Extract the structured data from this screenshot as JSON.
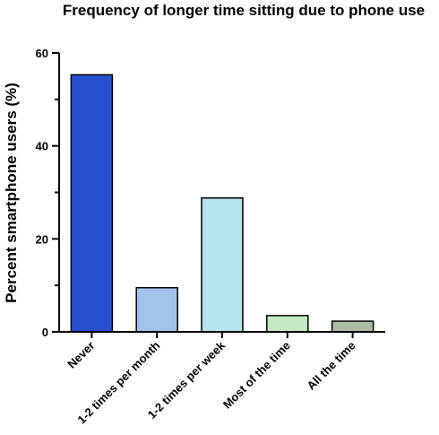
{
  "chart_data": {
    "type": "bar",
    "title": "Frequency of longer time sitting due to phone use",
    "xlabel": "",
    "ylabel": "Percent smartphone users (%)",
    "categories": [
      "Never",
      "1-2 times per month",
      "1-2 times per week",
      "Most of the time",
      "All the time"
    ],
    "values": [
      55.3,
      9.5,
      28.8,
      3.5,
      2.3
    ],
    "bar_colors": [
      "#2650cf",
      "#a2c4ec",
      "#b5e3ef",
      "#c3eac1",
      "#adbba4"
    ],
    "ylim": [
      0,
      60
    ],
    "y_ticks": [
      0,
      20,
      40,
      60
    ],
    "y_tick_labels": [
      "0",
      "20",
      "40",
      "60"
    ],
    "grid": false,
    "legend": "none"
  }
}
